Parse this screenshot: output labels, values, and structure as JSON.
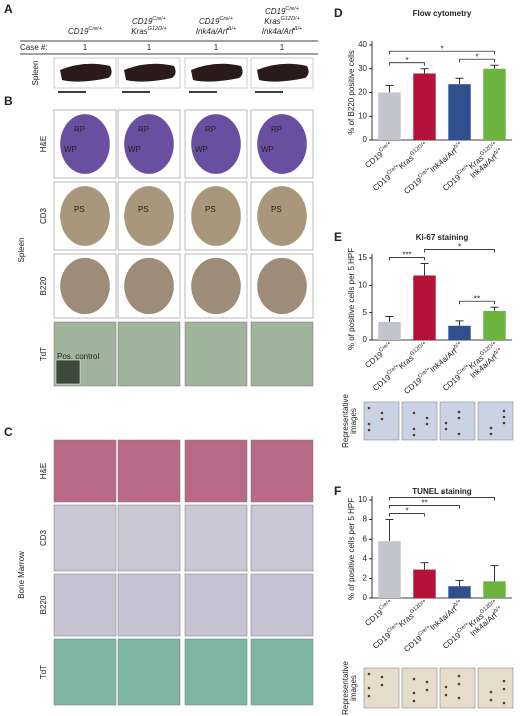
{
  "panels": {
    "A": {
      "label": "A",
      "headers": [
        [
          [
            "CD19",
            "Cre/+"
          ]
        ],
        [
          [
            "CD19",
            "Cre/+"
          ],
          [
            "Kras",
            "G12D/+"
          ]
        ],
        [
          [
            "CD19",
            "Cre/+"
          ],
          [
            "Ink4a/Arf",
            "Δ/+"
          ]
        ],
        [
          [
            "CD19",
            "Cre/+"
          ],
          [
            "Kras",
            "G12D/+"
          ],
          [
            "Ink4a/Arf",
            "Δ/+"
          ]
        ]
      ],
      "case_label": "Case #:",
      "cases": [
        "1",
        "1",
        "1",
        "1"
      ],
      "row_label": "Spleen"
    },
    "B": {
      "label": "B",
      "side_label": "Spleen",
      "rows": [
        "H&E",
        "CD3",
        "B220",
        "TdT"
      ],
      "annotations": {
        "rp": "RP",
        "wp": "WP",
        "ps": "PS",
        "pos_control": "Pos. control"
      }
    },
    "C": {
      "label": "C",
      "side_label": "Bone Marrow",
      "rows": [
        "H&E",
        "CD3",
        "B220",
        "TdT"
      ]
    }
  },
  "chart_data": [
    {
      "type": "bar",
      "panel_label": "D",
      "title": "Flow cytometry",
      "ylabel": "% of B220 positive cells",
      "categories": [
        [
          [
            "CD19",
            "Cre/+"
          ]
        ],
        [
          [
            "CD19",
            "Cre/+",
            "Kras",
            "G12D/+"
          ]
        ],
        [
          [
            "CD19",
            "Cre/+",
            "Ink4a/Arf",
            "Δ/+"
          ]
        ],
        [
          [
            "CD19",
            "Cre/+",
            "Kras",
            "G12D/+"
          ],
          [
            "Ink4a/Arf",
            "Δ/+"
          ]
        ]
      ],
      "values": [
        20,
        28,
        23.5,
        30
      ],
      "errors": [
        3,
        2,
        2.5,
        1.5
      ],
      "colors": [
        "#c4c4cc",
        "#b5123a",
        "#2f4f8f",
        "#6cb33f"
      ],
      "ylim": [
        0,
        40
      ],
      "yticks": [
        0,
        10,
        20,
        30,
        40
      ],
      "brackets": [
        {
          "from": 0,
          "to": 1,
          "label": "*"
        },
        {
          "from": 2,
          "to": 3,
          "label": "*"
        },
        {
          "from": 0,
          "to": 3,
          "label": "*"
        }
      ]
    },
    {
      "type": "bar",
      "panel_label": "E",
      "title": "Ki-67 staining",
      "ylabel": "% of positive cells per 5 HPF",
      "categories": [
        [
          [
            "CD19",
            "Cre/+"
          ]
        ],
        [
          [
            "CD19",
            "Cre/+",
            "Kras",
            "G12D/+"
          ]
        ],
        [
          [
            "CD19",
            "Cre/+",
            "Ink4a/Arf",
            "Δ/+"
          ]
        ],
        [
          [
            "CD19",
            "Cre/+",
            "Kras",
            "G12D/+"
          ],
          [
            "Ink4a/Arf",
            "Δ/+"
          ]
        ]
      ],
      "values": [
        3.3,
        11.8,
        2.6,
        5.3
      ],
      "errors": [
        1,
        2.2,
        0.9,
        0.7
      ],
      "colors": [
        "#c4c4cc",
        "#b5123a",
        "#2f4f8f",
        "#6cb33f"
      ],
      "ylim": [
        0,
        15
      ],
      "yticks": [
        0,
        5,
        10,
        15
      ],
      "brackets": [
        {
          "from": 0,
          "to": 1,
          "label": "***"
        },
        {
          "from": 2,
          "to": 3,
          "label": "**"
        },
        {
          "from": 1,
          "to": 3,
          "label": "*"
        }
      ],
      "image_label": [
        "Representative",
        "images"
      ]
    },
    {
      "type": "bar",
      "panel_label": "F",
      "title": "TUNEL staining",
      "ylabel": "% of positive cells per 5 HPF",
      "categories": [
        [
          [
            "CD19",
            "Cre/+"
          ]
        ],
        [
          [
            "CD19",
            "Cre/+",
            "Kras",
            "G12D/+"
          ]
        ],
        [
          [
            "CD19",
            "Cre/+",
            "Ink4a/Arf",
            "Δ/+"
          ]
        ],
        [
          [
            "CD19",
            "Cre/+",
            "Kras",
            "G12D/+"
          ],
          [
            "Ink4a/Arf",
            "Δ/+"
          ]
        ]
      ],
      "values": [
        5.8,
        2.9,
        1.2,
        1.7
      ],
      "errors": [
        2.2,
        0.7,
        0.6,
        1.6
      ],
      "colors": [
        "#c4c4cc",
        "#b5123a",
        "#2f4f8f",
        "#6cb33f"
      ],
      "ylim": [
        0,
        10
      ],
      "yticks": [
        0,
        2,
        4,
        6,
        8,
        10
      ],
      "brackets": [
        {
          "from": 0,
          "to": 1,
          "label": "*"
        },
        {
          "from": 0,
          "to": 2,
          "label": "**"
        },
        {
          "from": 0,
          "to": 3,
          "label": "*"
        }
      ],
      "image_label": [
        "Representative",
        "images"
      ]
    }
  ]
}
